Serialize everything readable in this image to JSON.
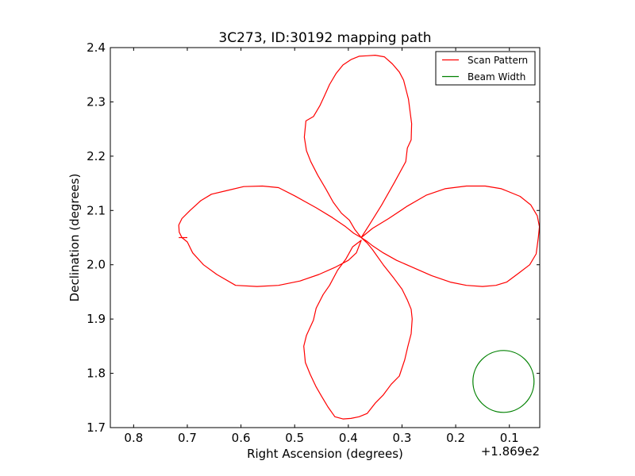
{
  "chart_data": {
    "type": "line",
    "title": "3C273, ID:30192 mapping path",
    "xlabel": "Right Ascension (degrees)",
    "ylabel": "Declination (degrees)",
    "x_offset_label": "+1.869e2",
    "x_inverted": true,
    "xlim": [
      0.8434,
      0.0434
    ],
    "ylim": [
      1.7,
      2.4
    ],
    "x_ticks": [
      0.8,
      0.7,
      0.6,
      0.5,
      0.4,
      0.3,
      0.2,
      0.1
    ],
    "x_tick_labels": [
      "0.8",
      "0.7",
      "0.6",
      "0.5",
      "0.4",
      "0.3",
      "0.2",
      "0.1"
    ],
    "y_ticks": [
      1.7,
      1.8,
      1.9,
      2.0,
      2.1,
      2.2,
      2.3,
      2.4
    ],
    "y_tick_labels": [
      "1.7",
      "1.8",
      "1.9",
      "2.0",
      "2.1",
      "2.2",
      "2.3",
      "2.4"
    ],
    "grid": false,
    "legend_position": "top-right",
    "series": [
      {
        "name": "Scan Pattern",
        "color": "#ff0000",
        "x": [
          0.376,
          0.36,
          0.338,
          0.315,
          0.293,
          0.29,
          0.283,
          0.282,
          0.288,
          0.297,
          0.305,
          0.318,
          0.333,
          0.35,
          0.365,
          0.38,
          0.395,
          0.41,
          0.423,
          0.435,
          0.445,
          0.453,
          0.465,
          0.479,
          0.482,
          0.478,
          0.47,
          0.457,
          0.442,
          0.428,
          0.413,
          0.398,
          0.388,
          0.376,
          0.355,
          0.325,
          0.29,
          0.255,
          0.22,
          0.18,
          0.145,
          0.115,
          0.08,
          0.06,
          0.048,
          0.044,
          0.046,
          0.05,
          0.062,
          0.082,
          0.105,
          0.125,
          0.15,
          0.18,
          0.21,
          0.245,
          0.28,
          0.31,
          0.335,
          0.355,
          0.365,
          0.376,
          0.39,
          0.405,
          0.43,
          0.46,
          0.5,
          0.53,
          0.56,
          0.595,
          0.625,
          0.655,
          0.675,
          0.695,
          0.71,
          0.716,
          0.715,
          0.71,
          0.7,
          0.69,
          0.67,
          0.645,
          0.61,
          0.57,
          0.53,
          0.49,
          0.455,
          0.425,
          0.4,
          0.385,
          0.376,
          0.392,
          0.405,
          0.42,
          0.435,
          0.447,
          0.46,
          0.465,
          0.478,
          0.483,
          0.48,
          0.471,
          0.46,
          0.45,
          0.438,
          0.425,
          0.41,
          0.395,
          0.38,
          0.365,
          0.35,
          0.335,
          0.32,
          0.305,
          0.295,
          0.289,
          0.283,
          0.281,
          0.283,
          0.29,
          0.3,
          0.315,
          0.335,
          0.355,
          0.365,
          0.376
        ],
        "y": [
          2.05,
          2.075,
          2.11,
          2.15,
          2.19,
          2.215,
          2.23,
          2.26,
          2.305,
          2.34,
          2.355,
          2.37,
          2.383,
          2.386,
          2.385,
          2.384,
          2.378,
          2.368,
          2.352,
          2.332,
          2.31,
          2.293,
          2.273,
          2.265,
          2.235,
          2.21,
          2.19,
          2.165,
          2.14,
          2.115,
          2.095,
          2.082,
          2.065,
          2.05,
          2.067,
          2.085,
          2.108,
          2.128,
          2.14,
          2.145,
          2.145,
          2.14,
          2.126,
          2.11,
          2.09,
          2.07,
          2.05,
          2.02,
          2.0,
          1.985,
          1.968,
          1.962,
          1.96,
          1.962,
          1.968,
          1.98,
          1.995,
          2.008,
          2.022,
          2.035,
          2.043,
          2.05,
          2.058,
          2.07,
          2.087,
          2.105,
          2.127,
          2.142,
          2.145,
          2.144,
          2.137,
          2.13,
          2.118,
          2.1,
          2.085,
          2.073,
          2.06,
          2.05,
          2.042,
          2.022,
          2.0,
          1.982,
          1.962,
          1.96,
          1.962,
          1.97,
          1.982,
          1.995,
          2.008,
          2.022,
          2.045,
          2.033,
          2.01,
          1.99,
          1.962,
          1.945,
          1.92,
          1.898,
          1.87,
          1.85,
          1.82,
          1.798,
          1.775,
          1.758,
          1.738,
          1.72,
          1.716,
          1.717,
          1.72,
          1.726,
          1.745,
          1.76,
          1.78,
          1.795,
          1.825,
          1.85,
          1.873,
          1.9,
          1.918,
          1.935,
          1.955,
          1.975,
          2.0,
          2.028,
          2.04,
          2.05
        ]
      },
      {
        "name": "Beam Width",
        "color": "#008000",
        "shape": "circle",
        "center": [
          0.111,
          1.785
        ],
        "radius": 0.057
      }
    ]
  }
}
